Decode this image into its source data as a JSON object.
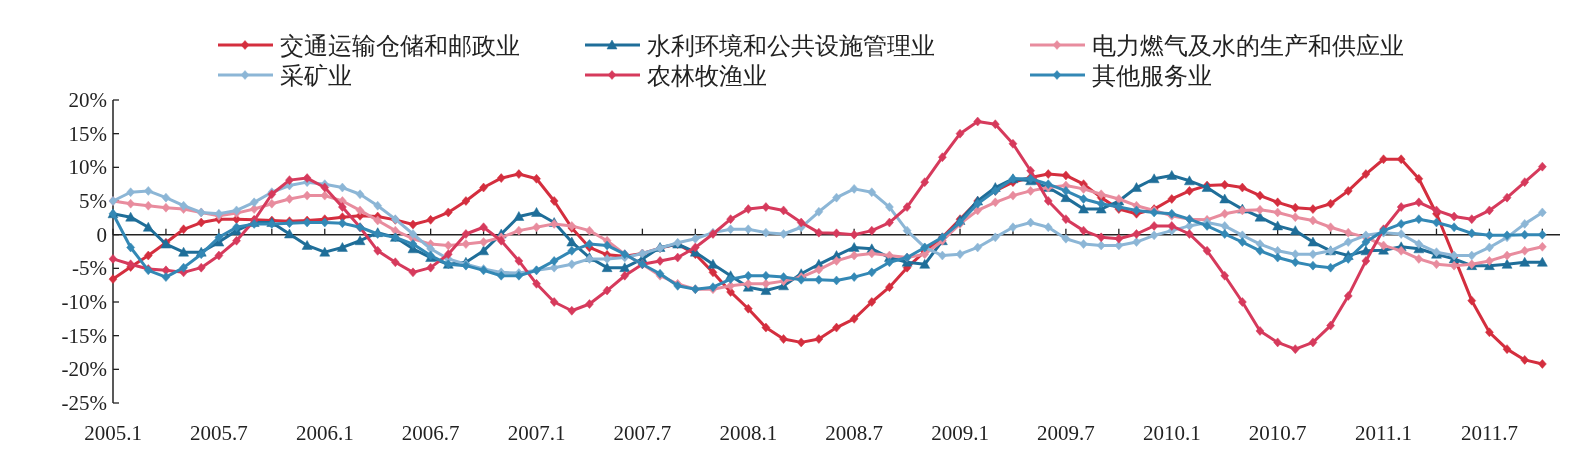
{
  "chart_data": {
    "type": "line",
    "legend": "top",
    "line_style": "solid",
    "x": [
      "2005-01",
      "2005-02",
      "2005-03",
      "2005-04",
      "2005-05",
      "2005-06",
      "2005-07",
      "2005-08",
      "2005-09",
      "2005-10",
      "2005-11",
      "2005-12",
      "2006-01",
      "2006-02",
      "2006-03",
      "2006-04",
      "2006-05",
      "2006-06",
      "2006-07",
      "2006-08",
      "2006-09",
      "2006-10",
      "2006-11",
      "2006-12",
      "2007-01",
      "2007-02",
      "2007-03",
      "2007-04",
      "2007-05",
      "2007-06",
      "2007-07",
      "2007-08",
      "2007-09",
      "2007-10",
      "2007-11",
      "2007-12",
      "2008-01",
      "2008-02",
      "2008-03",
      "2008-04",
      "2008-05",
      "2008-06",
      "2008-07",
      "2008-08",
      "2008-09",
      "2008-10",
      "2008-11",
      "2008-12",
      "2009-01",
      "2009-02",
      "2009-03",
      "2009-04",
      "2009-05",
      "2009-06",
      "2009-07",
      "2009-08",
      "2009-09",
      "2009-10",
      "2009-11",
      "2009-12",
      "2010-01",
      "2010-02",
      "2010-03",
      "2010-04",
      "2010-05",
      "2010-06",
      "2010-07",
      "2010-08",
      "2010-09",
      "2010-10",
      "2010-11",
      "2010-12",
      "2011-01",
      "2011-02",
      "2011-03",
      "2011-04",
      "2011-05",
      "2011-06",
      "2011-07",
      "2011-08",
      "2011-09",
      "2011-10"
    ],
    "xlim": [
      "2005-01",
      "2011-11"
    ],
    "xticks": [
      {
        "value": "2005-01",
        "label": "2005.1"
      },
      {
        "value": "2005-04",
        "label": null
      },
      {
        "value": "2005-07",
        "label": "2005.7"
      },
      {
        "value": "2005-10",
        "label": null
      },
      {
        "value": "2006-01",
        "label": "2006.1"
      },
      {
        "value": "2006-04",
        "label": null
      },
      {
        "value": "2006-07",
        "label": "2006.7"
      },
      {
        "value": "2006-10",
        "label": null
      },
      {
        "value": "2007-01",
        "label": "2007.1"
      },
      {
        "value": "2007-04",
        "label": null
      },
      {
        "value": "2007-07",
        "label": "2007.7"
      },
      {
        "value": "2007-10",
        "label": null
      },
      {
        "value": "2008-01",
        "label": "2008.1"
      },
      {
        "value": "2008-04",
        "label": null
      },
      {
        "value": "2008-07",
        "label": "2008.7"
      },
      {
        "value": "2008-10",
        "label": null
      },
      {
        "value": "2009-01",
        "label": "2009.1"
      },
      {
        "value": "2009-04",
        "label": null
      },
      {
        "value": "2009-07",
        "label": "2009.7"
      },
      {
        "value": "2009-10",
        "label": null
      },
      {
        "value": "2010-01",
        "label": "2010.1"
      },
      {
        "value": "2010-04",
        "label": null
      },
      {
        "value": "2010-07",
        "label": "2010.7"
      },
      {
        "value": "2010-10",
        "label": null
      },
      {
        "value": "2011-01",
        "label": "2011.1"
      },
      {
        "value": "2011-04",
        "label": null
      },
      {
        "value": "2011-07",
        "label": "2011.7"
      },
      {
        "value": "2011-10",
        "label": null
      }
    ],
    "ylim": [
      -25,
      20
    ],
    "yticks": [
      {
        "value": 20,
        "label": "20%"
      },
      {
        "value": 15,
        "label": "15%"
      },
      {
        "value": 10,
        "label": "10%"
      },
      {
        "value": 5,
        "label": "5%"
      },
      {
        "value": 0,
        "label": "0"
      },
      {
        "value": -5,
        "label": "-5%"
      },
      {
        "value": -10,
        "label": "-10%"
      },
      {
        "value": -15,
        "label": "-15%"
      },
      {
        "value": -20,
        "label": "-20%"
      },
      {
        "value": -25,
        "label": "-25%"
      }
    ],
    "series": [
      {
        "name": "交通运输仓储和邮政业",
        "color": "#d42e3e",
        "marker": "diamond",
        "values": [
          -6.6,
          -4.8,
          -3.1,
          -1.2,
          0.8,
          1.8,
          2.3,
          2.3,
          2.2,
          2.1,
          2.0,
          2.1,
          2.3,
          2.6,
          2.8,
          2.7,
          2.2,
          1.5,
          2.2,
          3.3,
          5.0,
          7.0,
          8.4,
          9.0,
          8.3,
          5.0,
          1.0,
          -1.9,
          -3.0,
          -3.2,
          -2.8,
          -2.0,
          -1.4,
          -2.9,
          -5.6,
          -8.5,
          -11,
          -13.8,
          -15.5,
          -16,
          -15.5,
          -13.8,
          -12.5,
          -10,
          -7.8,
          -4.9,
          -2.5,
          -0.4,
          2.3,
          5.0,
          6.5,
          7.8,
          8.5,
          9.0,
          8.8,
          7.5,
          5.5,
          3.8,
          3.1,
          3.8,
          5.3,
          6.5,
          7.3,
          7.4,
          7.0,
          5.8,
          4.8,
          4.0,
          3.8,
          4.6,
          6.5,
          9.0,
          11.2,
          11.2,
          8.3,
          3.1,
          -3.3,
          -9.8,
          -14.5,
          -17,
          -18.6,
          -19.2
        ]
      },
      {
        "name": "水利环境和公共设施管理业",
        "color": "#1f6e99",
        "marker": "triangle",
        "values": [
          3.1,
          2.6,
          1.1,
          -1.4,
          -2.6,
          -2.6,
          -1.1,
          0.6,
          1.8,
          1.8,
          0.1,
          -1.6,
          -2.6,
          -1.9,
          -0.9,
          0.3,
          -0.4,
          -2.1,
          -3.4,
          -4.4,
          -4.1,
          -2.4,
          0.1,
          2.7,
          3.3,
          1.8,
          -1.1,
          -3.4,
          -4.9,
          -4.9,
          -3.6,
          -1.9,
          -1.4,
          -2.6,
          -4.4,
          -6.1,
          -7.8,
          -8.3,
          -7.6,
          -5.8,
          -4.4,
          -3.1,
          -1.9,
          -2.1,
          -3.4,
          -4.1,
          -4.4,
          -0.9,
          2.1,
          5.0,
          7.0,
          8.3,
          8.0,
          7.0,
          5.5,
          3.8,
          3.8,
          5.0,
          7.0,
          8.3,
          8.8,
          8.0,
          7.0,
          5.3,
          3.8,
          2.6,
          1.3,
          0.6,
          -1.1,
          -2.4,
          -3.1,
          -2.4,
          -2.3,
          -1.8,
          -2.1,
          -2.9,
          -3.6,
          -4.6,
          -4.6,
          -4.4,
          -4.1,
          -4.1
        ]
      },
      {
        "name": "电力燃气及水的生产和供应业",
        "color": "#e88c9e",
        "marker": "diamond",
        "values": [
          5.0,
          4.6,
          4.3,
          4.0,
          3.8,
          3.3,
          2.8,
          3.2,
          3.8,
          4.6,
          5.3,
          5.8,
          5.8,
          5.0,
          3.6,
          2.1,
          0.6,
          -0.6,
          -1.4,
          -1.6,
          -1.4,
          -1.1,
          -0.4,
          0.6,
          1.1,
          1.6,
          1.3,
          0.6,
          -0.9,
          -2.9,
          -4.4,
          -6.1,
          -7.3,
          -8.1,
          -8.1,
          -7.6,
          -7.3,
          -7.3,
          -6.9,
          -6.3,
          -5.2,
          -3.9,
          -3.1,
          -2.8,
          -3.1,
          -3.4,
          -2.9,
          -0.9,
          1.6,
          3.6,
          4.8,
          5.8,
          6.5,
          7.0,
          7.3,
          6.8,
          6.0,
          5.3,
          4.3,
          3.6,
          2.8,
          2.3,
          2.2,
          3.1,
          3.6,
          3.7,
          3.3,
          2.6,
          2.1,
          1.1,
          0.3,
          -0.4,
          -1.6,
          -2.4,
          -3.6,
          -4.4,
          -4.6,
          -4.4,
          -3.9,
          -3.1,
          -2.4,
          -1.8
        ]
      },
      {
        "name": "采矿业",
        "color": "#8cb6d6",
        "marker": "diamond",
        "values": [
          5.0,
          6.3,
          6.5,
          5.5,
          4.3,
          3.3,
          3.1,
          3.6,
          4.8,
          6.3,
          7.3,
          7.8,
          7.5,
          7.0,
          6.0,
          4.3,
          2.3,
          0.1,
          -2.1,
          -3.6,
          -4.4,
          -5.1,
          -5.6,
          -5.7,
          -5.3,
          -4.9,
          -4.4,
          -3.6,
          -3.6,
          -3.4,
          -2.8,
          -2.0,
          -1.2,
          -0.6,
          0.3,
          0.8,
          0.8,
          0.3,
          0.1,
          1.1,
          3.4,
          5.5,
          6.8,
          6.3,
          4.1,
          0.6,
          -1.9,
          -3.1,
          -2.9,
          -1.9,
          -0.4,
          1.1,
          1.8,
          1.1,
          -0.6,
          -1.4,
          -1.6,
          -1.6,
          -1.1,
          -0.1,
          0.6,
          1.3,
          1.8,
          1.3,
          -0.1,
          -1.4,
          -2.4,
          -2.9,
          -2.9,
          -2.4,
          -1.1,
          -0.1,
          0.3,
          0.1,
          -1.4,
          -2.6,
          -3.1,
          -3.1,
          -1.9,
          -0.4,
          1.6,
          3.3
        ]
      },
      {
        "name": "农林牧渔业",
        "color": "#d63a5c",
        "marker": "diamond",
        "values": [
          -3.6,
          -4.4,
          -5.1,
          -5.3,
          -5.6,
          -4.9,
          -3.1,
          -0.9,
          2.1,
          6.0,
          8.1,
          8.4,
          7.0,
          4.1,
          1.1,
          -2.4,
          -4.1,
          -5.6,
          -4.9,
          -2.9,
          0.1,
          1.1,
          -0.9,
          -3.9,
          -7.3,
          -10,
          -11.3,
          -10.3,
          -8.3,
          -6.1,
          -4.4,
          -3.9,
          -3.4,
          -1.9,
          0.1,
          2.3,
          3.8,
          4.1,
          3.6,
          1.8,
          0.3,
          0.2,
          0,
          0.6,
          1.8,
          4.1,
          7.8,
          11.5,
          15,
          16.8,
          16.4,
          13.5,
          9.5,
          5,
          2.3,
          0.6,
          -0.4,
          -0.6,
          0.1,
          1.3,
          1.3,
          0.1,
          -2.4,
          -6.1,
          -10,
          -14.3,
          -16,
          -17,
          -16,
          -13.5,
          -9.1,
          -3.9,
          0.8,
          4.1,
          4.8,
          3.6,
          2.7,
          2.3,
          3.6,
          5.5,
          7.8,
          10.1
        ]
      },
      {
        "name": "其他服务业",
        "color": "#3388b5",
        "marker": "diamond",
        "values": [
          3.1,
          -1.9,
          -5.3,
          -6.3,
          -4.9,
          -2.9,
          -0.4,
          1.1,
          1.6,
          1.6,
          1.7,
          1.8,
          1.8,
          1.7,
          1.1,
          0.1,
          -0.4,
          -1.4,
          -3.1,
          -4.4,
          -4.6,
          -5.3,
          -6.1,
          -6.1,
          -5.3,
          -3.9,
          -2.4,
          -1.4,
          -1.6,
          -2.9,
          -4.4,
          -5.8,
          -7.6,
          -8.1,
          -7.8,
          -6.6,
          -6.1,
          -6.1,
          -6.3,
          -6.7,
          -6.7,
          -6.8,
          -6.3,
          -5.6,
          -4.1,
          -3.4,
          -1.9,
          -0.4,
          1.8,
          4.6,
          6.5,
          8.3,
          8.3,
          7.5,
          6.5,
          5.3,
          4.6,
          4.1,
          3.6,
          3.3,
          3.1,
          2.3,
          1.3,
          0.1,
          -1.1,
          -2.4,
          -3.4,
          -4.1,
          -4.6,
          -4.9,
          -3.6,
          -1.1,
          0.6,
          1.6,
          2.3,
          1.8,
          1.1,
          0.2,
          -0.1,
          -0.1,
          0,
          0
        ]
      }
    ]
  }
}
